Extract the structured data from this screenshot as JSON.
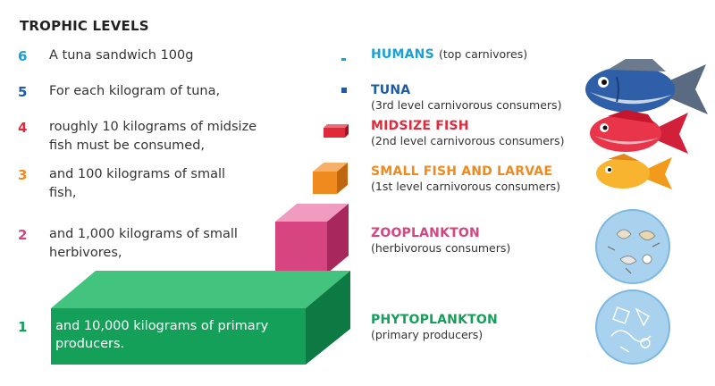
{
  "title": "TROPHIC LEVELS",
  "colors": {
    "level6": "#1aa0d8",
    "level5": "#1f5aa8",
    "level4": "#e02a3c",
    "level3": "#ef8a1e",
    "level2": "#d6457f",
    "level1": "#15a05a"
  },
  "levels": [
    {
      "num": "6",
      "desc": "A tuna sandwich 100g",
      "name": "HUMANS",
      "sub": "(top carnivores)"
    },
    {
      "num": "5",
      "desc": "For each kilogram of tuna,",
      "name": "TUNA",
      "sub": "(3rd level carnivorous consumers)"
    },
    {
      "num": "4",
      "desc": "roughly 10 kilograms of midsize\nfish must be consumed,",
      "name": "MIDSIZE FISH",
      "sub": "(2nd level carnivorous consumers)"
    },
    {
      "num": "3",
      "desc": "and 100 kilograms of small\nfish,",
      "name": "SMALL FISH AND LARVAE",
      "sub": "(1st level carnivorous consumers)"
    },
    {
      "num": "2",
      "desc": "and 1,000 kilograms of small\nherbivores,",
      "name": "ZOOPLANKTON",
      "sub": "(herbivorous consumers)"
    },
    {
      "num": "1",
      "desc": "and 10,000 kilograms of primary\nproducers.",
      "name": "PHYTOPLANKTON",
      "sub": "(primary producers)"
    }
  ]
}
